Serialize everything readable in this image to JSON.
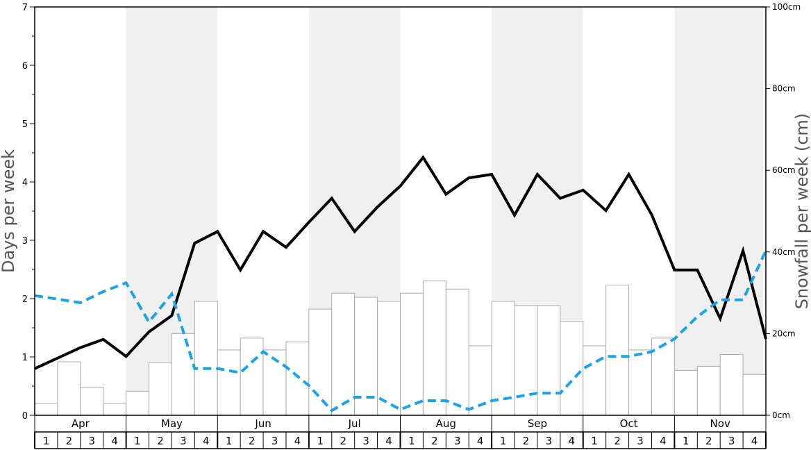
{
  "chart_data": {
    "type": "bar",
    "months": [
      "Apr",
      "May",
      "Jun",
      "Jul",
      "Aug",
      "Sep",
      "Oct",
      "Nov"
    ],
    "weeks": [
      "1",
      "2",
      "3",
      "4"
    ],
    "ylabel_left": "Days per week",
    "ylabel_right": "Snowfall per week (cm)",
    "ylim_left": [
      0,
      7
    ],
    "yticks_left": [
      "0",
      "1",
      "2",
      "3",
      "4",
      "5",
      "6",
      "7"
    ],
    "ylim_right": [
      0,
      100
    ],
    "yticks_right": [
      "0cm",
      "20cm",
      "40cm",
      "60cm",
      "80cm",
      "100cm"
    ],
    "grid": false,
    "band_colors": [
      "#ffffff",
      "#f0f0f0"
    ],
    "series": [
      {
        "type": "bar",
        "axis": "right",
        "color": "#ffffff",
        "edge_color": "#aaaaaa",
        "values": [
          2.9,
          13.1,
          6.9,
          2.9,
          5.9,
          13.0,
          20.0,
          27.9,
          16.0,
          18.9,
          16.0,
          18.0,
          26.0,
          29.9,
          28.9,
          27.9,
          29.9,
          32.9,
          30.9,
          17.0,
          27.9,
          26.9,
          26.9,
          23.0,
          17.0,
          31.9,
          16.0,
          18.9,
          11.0,
          12.0,
          14.9,
          10.0
        ]
      },
      {
        "type": "line",
        "axis": "left",
        "style": "solid",
        "color": "#000000",
        "values": [
          0.8,
          0.98,
          1.16,
          1.3,
          1.01,
          1.43,
          1.71,
          2.95,
          3.15,
          2.49,
          3.15,
          2.88,
          3.31,
          3.72,
          3.15,
          3.57,
          3.93,
          4.42,
          3.79,
          4.07,
          4.13,
          3.43,
          4.13,
          3.72,
          3.86,
          3.51,
          4.13,
          3.44,
          2.49,
          2.49,
          1.66,
          2.82,
          1.31
        ]
      },
      {
        "type": "line",
        "axis": "left",
        "style": "dashed",
        "color": "#1aa3e8",
        "values": [
          2.05,
          1.99,
          1.93,
          2.12,
          2.27,
          1.6,
          2.08,
          0.8,
          0.8,
          0.73,
          1.09,
          0.83,
          0.51,
          0.08,
          0.31,
          0.31,
          0.1,
          0.25,
          0.25,
          0.1,
          0.25,
          0.31,
          0.38,
          0.38,
          0.8,
          1.01,
          1.01,
          1.09,
          1.31,
          1.69,
          1.98,
          1.98,
          2.82
        ]
      }
    ]
  }
}
